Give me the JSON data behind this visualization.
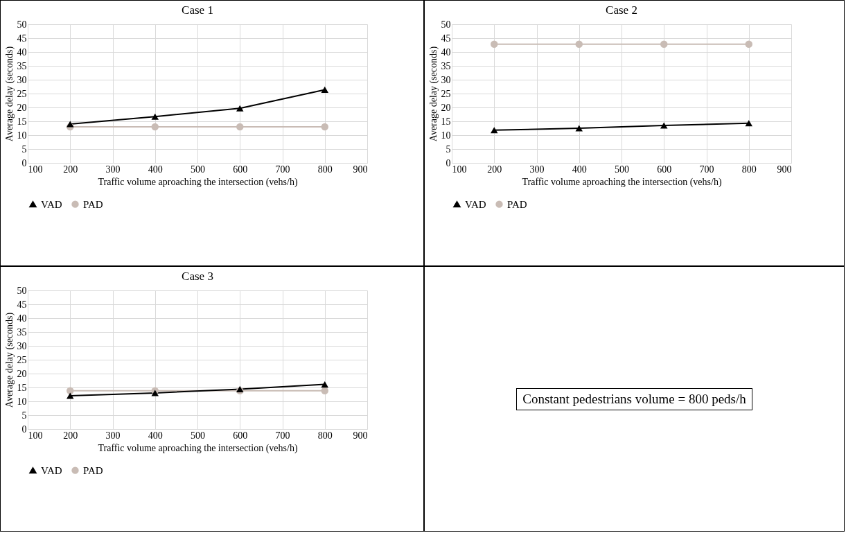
{
  "chart_data": [
    {
      "type": "line",
      "title": "Case 1",
      "xlabel": "Traffic volume aproaching the intersection (vehs/h)",
      "ylabel": "Average delay (seconds)",
      "x": [
        200,
        400,
        600,
        800
      ],
      "xlim": [
        100,
        900
      ],
      "xticks": [
        100,
        200,
        300,
        400,
        500,
        600,
        700,
        800,
        900
      ],
      "ylim": [
        0,
        50
      ],
      "yticks": [
        0,
        5,
        10,
        15,
        20,
        25,
        30,
        35,
        40,
        45,
        50
      ],
      "grid": true,
      "legend": "bottom",
      "series": [
        {
          "name": "VAD",
          "color": "#000000",
          "marker": "triangle",
          "values": [
            14,
            16.7,
            19.7,
            26.4
          ]
        },
        {
          "name": "PAD",
          "color": "#c9bcb5",
          "marker": "circle",
          "values": [
            13,
            13,
            13,
            13
          ]
        }
      ]
    },
    {
      "type": "line",
      "title": "Case 2",
      "xlabel": "Traffic volume aproaching the intersection (vehs/h)",
      "ylabel": "Average delay (seconds)",
      "x": [
        200,
        400,
        600,
        800
      ],
      "xlim": [
        100,
        900
      ],
      "xticks": [
        100,
        200,
        300,
        400,
        500,
        600,
        700,
        800,
        900
      ],
      "ylim": [
        0,
        50
      ],
      "yticks": [
        0,
        5,
        10,
        15,
        20,
        25,
        30,
        35,
        40,
        45,
        50
      ],
      "grid": true,
      "legend": "bottom",
      "series": [
        {
          "name": "VAD",
          "color": "#000000",
          "marker": "triangle",
          "values": [
            11.8,
            12.5,
            13.5,
            14.3
          ]
        },
        {
          "name": "PAD",
          "color": "#c9bcb5",
          "marker": "circle",
          "values": [
            42.8,
            42.8,
            42.8,
            42.8
          ]
        }
      ]
    },
    {
      "type": "line",
      "title": "Case 3",
      "xlabel": "Traffic volume aproaching the intersection (vehs/h)",
      "ylabel": "Average delay (seconds)",
      "x": [
        200,
        400,
        600,
        800
      ],
      "xlim": [
        100,
        900
      ],
      "xticks": [
        100,
        200,
        300,
        400,
        500,
        600,
        700,
        800,
        900
      ],
      "ylim": [
        0,
        50
      ],
      "yticks": [
        0,
        5,
        10,
        15,
        20,
        25,
        30,
        35,
        40,
        45,
        50
      ],
      "grid": true,
      "legend": "bottom",
      "series": [
        {
          "name": "VAD",
          "color": "#000000",
          "marker": "triangle",
          "values": [
            12,
            13,
            14.4,
            16.1
          ]
        },
        {
          "name": "PAD",
          "color": "#c9bcb5",
          "marker": "circle",
          "values": [
            13.8,
            13.8,
            13.8,
            13.8
          ]
        }
      ]
    },
    {
      "type": "other",
      "annotations": [
        "Constant pedestrians volume = 800 peds/h"
      ]
    }
  ]
}
